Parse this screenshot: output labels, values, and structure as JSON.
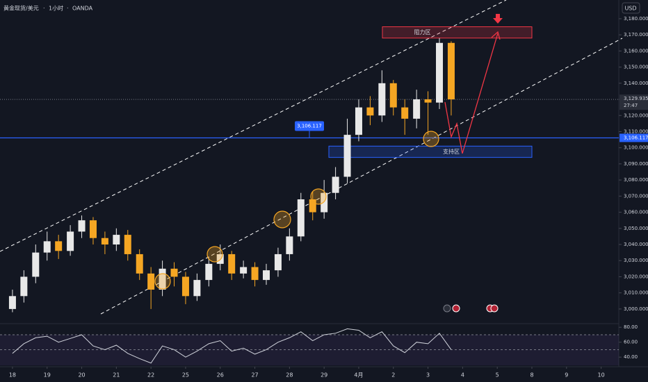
{
  "chart_data": {
    "type": "candlestick",
    "title": "黄金现货/美元",
    "interval": "1小时",
    "source": "OANDA",
    "currency": "USD",
    "up_color": "#e8e8e8",
    "down_color": "#f5a623",
    "x": [
      0,
      0.33,
      0.67,
      1,
      1.33,
      1.67,
      2,
      2.33,
      2.67,
      3,
      3.33,
      3.67,
      4,
      4.33,
      4.67,
      5,
      5.33,
      5.67,
      6,
      6.33,
      6.67,
      7,
      7.33,
      7.67,
      8,
      8.33,
      8.67,
      9,
      9.33,
      9.67,
      10,
      10.33,
      10.67,
      11,
      11.33,
      11.67,
      12,
      12.33,
      12.67
    ],
    "open": [
      3000,
      3008,
      3020,
      3035,
      3042,
      3036,
      3048,
      3055,
      3044,
      3040,
      3046,
      3034,
      3022,
      3012,
      3025,
      3020,
      3008,
      3018,
      3028,
      3034,
      3022,
      3026,
      3018,
      3024,
      3034,
      3045,
      3068,
      3060,
      3072,
      3082,
      3108,
      3125,
      3120,
      3140,
      3125,
      3118,
      3130,
      3128,
      3165
    ],
    "high": [
      3012,
      3024,
      3040,
      3048,
      3046,
      3052,
      3058,
      3057,
      3048,
      3050,
      3049,
      3037,
      3026,
      3030,
      3029,
      3023,
      3022,
      3032,
      3040,
      3036,
      3030,
      3029,
      3028,
      3038,
      3050,
      3072,
      3073,
      3080,
      3088,
      3118,
      3130,
      3132,
      3148,
      3142,
      3130,
      3136,
      3135,
      3168,
      3166
    ],
    "low": [
      2998,
      3004,
      3016,
      3030,
      3031,
      3033,
      3044,
      3040,
      3034,
      3036,
      3030,
      3018,
      3000,
      3008,
      3014,
      3003,
      3005,
      3014,
      3024,
      3018,
      3019,
      3014,
      3015,
      3020,
      3030,
      3042,
      3055,
      3056,
      3068,
      3078,
      3104,
      3114,
      3116,
      3120,
      3108,
      3112,
      3108,
      3124,
      3120
    ],
    "close": [
      3008,
      3020,
      3035,
      3042,
      3036,
      3048,
      3055,
      3044,
      3040,
      3046,
      3034,
      3022,
      3012,
      3025,
      3020,
      3008,
      3018,
      3028,
      3034,
      3022,
      3026,
      3018,
      3024,
      3034,
      3045,
      3068,
      3060,
      3072,
      3082,
      3108,
      3125,
      3120,
      3140,
      3125,
      3118,
      3130,
      3128,
      3165,
      3130
    ],
    "rsi": [
      45,
      58,
      66,
      68,
      60,
      65,
      70,
      55,
      50,
      56,
      45,
      38,
      32,
      55,
      50,
      40,
      48,
      58,
      62,
      48,
      52,
      44,
      50,
      60,
      66,
      74,
      62,
      70,
      72,
      78,
      76,
      66,
      74,
      55,
      46,
      60,
      58,
      72,
      50
    ],
    "rsi_color": "#d1d4dc",
    "rsi_levels": [
      70,
      50
    ],
    "rsi_ylim": [
      29,
      83
    ],
    "rsi_yticks": [
      {
        "value": 80,
        "label": "80.00"
      },
      {
        "value": 60,
        "label": "60.00"
      },
      {
        "value": 40,
        "label": "40.00"
      }
    ],
    "xlim": [
      -0.36,
      17.51
    ],
    "xticks": [
      {
        "value": 0,
        "label": "18"
      },
      {
        "value": 1,
        "label": "19"
      },
      {
        "value": 2,
        "label": "20"
      },
      {
        "value": 3,
        "label": "21"
      },
      {
        "value": 4,
        "label": "22"
      },
      {
        "value": 5,
        "label": "25"
      },
      {
        "value": 6,
        "label": "26"
      },
      {
        "value": 7,
        "label": "27"
      },
      {
        "value": 8,
        "label": "28"
      },
      {
        "value": 9,
        "label": "29"
      },
      {
        "value": 10,
        "label": "4月"
      },
      {
        "value": 11,
        "label": "2"
      },
      {
        "value": 12,
        "label": "3"
      },
      {
        "value": 13,
        "label": "4"
      },
      {
        "value": 14,
        "label": "5"
      },
      {
        "value": 15,
        "label": "8"
      },
      {
        "value": 16,
        "label": "9"
      },
      {
        "value": 17,
        "label": "10"
      }
    ],
    "ylim": [
      2992.2,
      3191.6
    ],
    "yticks": [
      {
        "value": 3000,
        "label": "3,000.000"
      },
      {
        "value": 3010,
        "label": "3,010.000"
      },
      {
        "value": 3020,
        "label": "3,020.000"
      },
      {
        "value": 3030,
        "label": "3,030.000"
      },
      {
        "value": 3040,
        "label": "3,040.000"
      },
      {
        "value": 3050,
        "label": "3,050.000"
      },
      {
        "value": 3060,
        "label": "3,060.000"
      },
      {
        "value": 3070,
        "label": "3,070.000"
      },
      {
        "value": 3080,
        "label": "3,080.000"
      },
      {
        "value": 3090,
        "label": "3,090.000"
      },
      {
        "value": 3100,
        "label": "3,100.000"
      },
      {
        "value": 3110,
        "label": "3,110.000"
      },
      {
        "value": 3120,
        "label": "3,120.000"
      },
      {
        "value": 3130,
        "label": "3,130.000"
      },
      {
        "value": 3140,
        "label": "3,140.000"
      },
      {
        "value": 3150,
        "label": "3,150.000"
      },
      {
        "value": 3160,
        "label": "3,160.000"
      },
      {
        "value": 3170,
        "label": "3,170.000"
      },
      {
        "value": 3180,
        "label": "3,180.000"
      }
    ],
    "last_price": {
      "value": 3129.935,
      "label": "3,129.935"
    },
    "countdown": "27:47",
    "level": {
      "value": 3106.117,
      "label": "3,106.117",
      "color": "#2962ff"
    },
    "zones": [
      {
        "label": "阻力区",
        "top": 3175,
        "bottom": 3168,
        "color": "#f23645"
      },
      {
        "label": "支持区",
        "top": 3101,
        "bottom": 3094,
        "color": "#2962ff"
      }
    ]
  }
}
